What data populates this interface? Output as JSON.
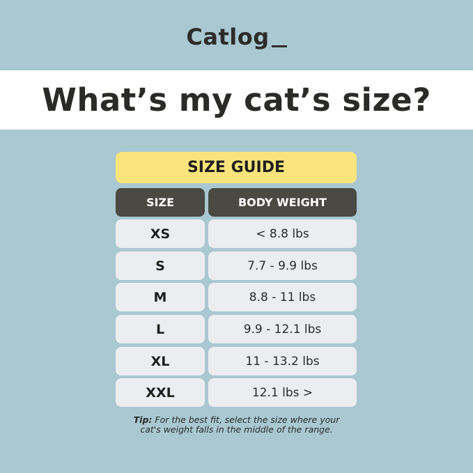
{
  "brand": {
    "logo": "Catlog"
  },
  "title": "What’s my cat’s size?",
  "guide": {
    "heading": "SIZE GUIDE",
    "columns": [
      "SIZE",
      "BODY WEIGHT"
    ],
    "rows": [
      {
        "size": "XS",
        "weight": "< 8.8 lbs"
      },
      {
        "size": "S",
        "weight": "7.7 - 9.9 lbs"
      },
      {
        "size": "M",
        "weight": "8.8 - 11 lbs"
      },
      {
        "size": "L",
        "weight": "9.9 - 12.1 lbs"
      },
      {
        "size": "XL",
        "weight": "11 - 13.2 lbs"
      },
      {
        "size": "XXL",
        "weight": "12.1 lbs >"
      }
    ]
  },
  "tip": {
    "label": "Tip:",
    "line1": " For the best fit, select the size where your",
    "line2": "cat's weight falls in the middle of the range."
  },
  "colors": {
    "background": "#aac8d2",
    "heading": "#fbe47c",
    "header_row": "#4a4944",
    "cell": "#ecedf0"
  }
}
